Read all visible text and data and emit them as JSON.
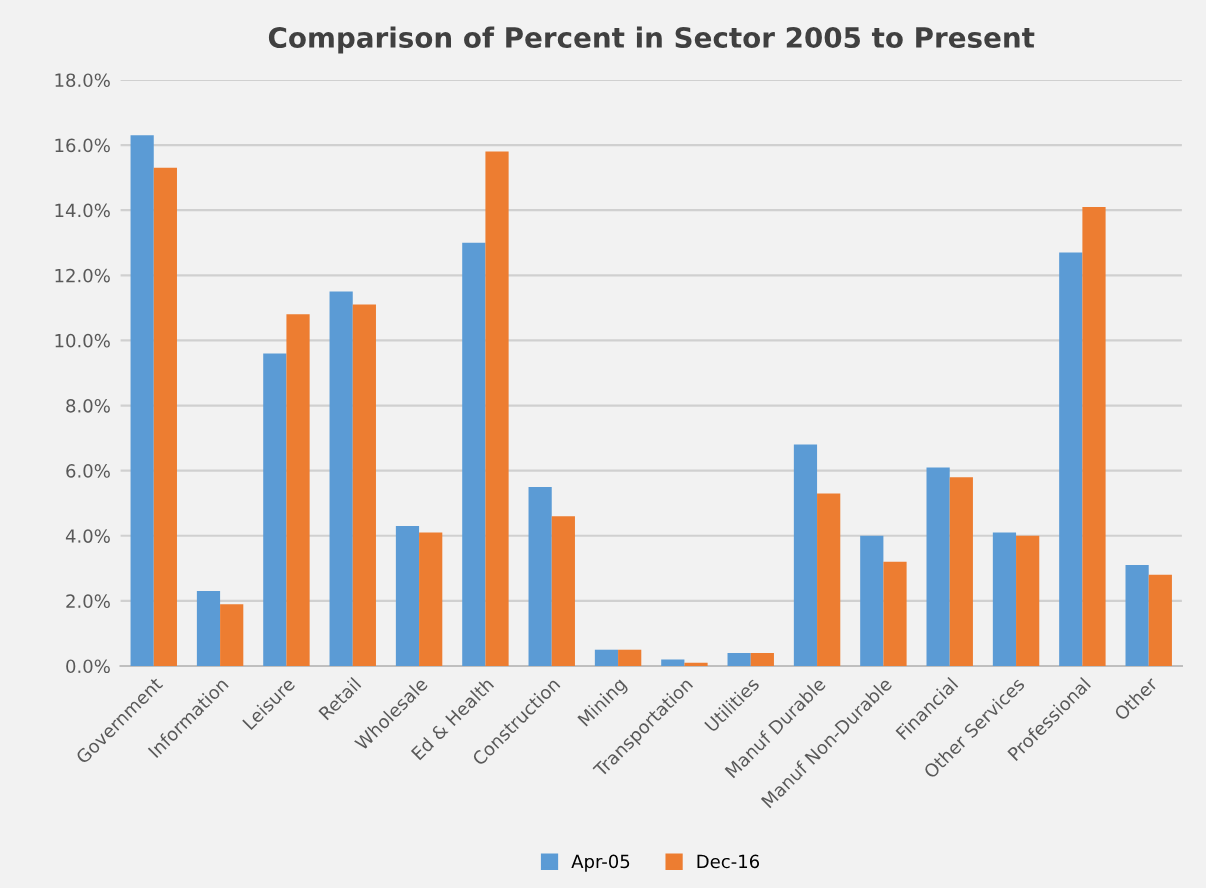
{
  "chart_data": {
    "type": "bar",
    "title": "Comparison of Percent in Sector 2005 to Present",
    "categories": [
      "Government",
      "Information",
      "Leisure",
      "Retail",
      "Wholesale",
      "Ed & Health",
      "Construction",
      "Mining",
      "Transportation",
      "Utilities",
      "Manuf Durable",
      "Manuf Non-Durable",
      "Financial",
      "Other Services",
      "Professional",
      "Other"
    ],
    "series": [
      {
        "name": "Apr-05",
        "color": "#5b9bd5",
        "values": [
          16.3,
          2.3,
          9.6,
          11.5,
          4.3,
          13.0,
          5.5,
          0.5,
          0.2,
          0.4,
          6.8,
          4.0,
          6.1,
          4.1,
          12.7,
          3.1
        ]
      },
      {
        "name": "Dec-16",
        "color": "#ed7d31",
        "values": [
          15.3,
          1.9,
          10.8,
          11.1,
          4.1,
          15.8,
          4.6,
          0.5,
          0.1,
          0.4,
          5.3,
          3.2,
          5.8,
          4.0,
          14.1,
          2.8
        ]
      }
    ],
    "ylim": [
      0,
      18
    ],
    "yticks": [
      {
        "value": 0,
        "label": "0.0%"
      },
      {
        "value": 2,
        "label": "2.0%"
      },
      {
        "value": 4,
        "label": "4.0%"
      },
      {
        "value": 6,
        "label": "6.0%"
      },
      {
        "value": 8,
        "label": "8.0%"
      },
      {
        "value": 10,
        "label": "10.0%"
      },
      {
        "value": 12,
        "label": "12.0%"
      },
      {
        "value": 14,
        "label": "14.0%"
      },
      {
        "value": 16,
        "label": "16.0%"
      },
      {
        "value": 18,
        "label": "18.0%"
      }
    ],
    "grid": "y",
    "legend": "bottom"
  }
}
